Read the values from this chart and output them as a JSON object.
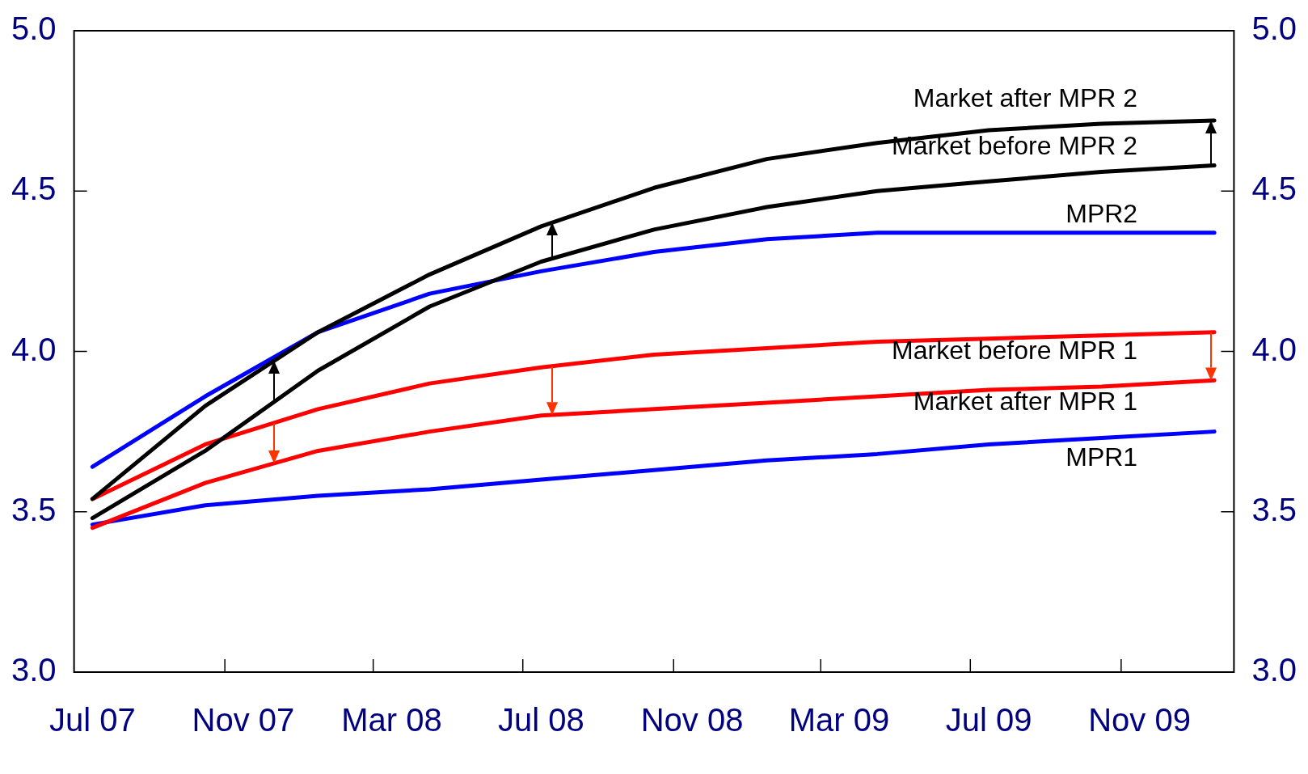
{
  "chart_data": {
    "type": "line",
    "x": [
      "2007-07-16",
      "2007-10-16",
      "2008-01-16",
      "2008-04-16",
      "2008-07-16",
      "2008-10-16",
      "2009-01-16",
      "2009-04-16",
      "2009-07-16",
      "2009-10-16",
      "2010-01-16"
    ],
    "series": [
      {
        "name": "Market after MPR 2",
        "color": "#000000",
        "values": [
          3.54,
          3.83,
          4.06,
          4.24,
          4.39,
          4.51,
          4.6,
          4.65,
          4.69,
          4.71,
          4.72
        ]
      },
      {
        "name": "Market before MPR 2",
        "color": "#000000",
        "values": [
          3.48,
          3.69,
          3.94,
          4.14,
          4.28,
          4.38,
          4.45,
          4.5,
          4.53,
          4.56,
          4.58
        ]
      },
      {
        "name": "MPR2",
        "color": "#0000ff",
        "values": [
          3.64,
          3.86,
          4.06,
          4.18,
          4.25,
          4.31,
          4.35,
          4.37,
          4.37,
          4.37,
          4.37
        ]
      },
      {
        "name": "Market before MPR 1",
        "color": "#ff0000",
        "values": [
          3.54,
          3.71,
          3.82,
          3.9,
          3.95,
          3.99,
          4.01,
          4.03,
          4.04,
          4.05,
          4.06
        ]
      },
      {
        "name": "Market after MPR 1",
        "color": "#ff0000",
        "values": [
          3.45,
          3.59,
          3.69,
          3.75,
          3.8,
          3.82,
          3.84,
          3.86,
          3.88,
          3.89,
          3.91
        ]
      },
      {
        "name": "MPR1",
        "color": "#0000ff",
        "values": [
          3.46,
          3.52,
          3.55,
          3.57,
          3.6,
          3.63,
          3.66,
          3.68,
          3.71,
          3.73,
          3.75
        ]
      }
    ],
    "xlim": [
      "2007-07-01",
      "2010-02-01"
    ],
    "xticks": [
      {
        "value": "2007-07-16",
        "label": "Jul 07"
      },
      {
        "value": "2007-11-01",
        "label": null
      },
      {
        "value": "2007-11-16",
        "label": "Nov 07"
      },
      {
        "value": "2008-03-01",
        "label": null
      },
      {
        "value": "2008-03-16",
        "label": "Mar 08"
      },
      {
        "value": "2008-07-01",
        "label": null
      },
      {
        "value": "2008-07-16",
        "label": "Jul 08"
      },
      {
        "value": "2008-11-01",
        "label": null
      },
      {
        "value": "2008-11-16",
        "label": "Nov 08"
      },
      {
        "value": "2009-03-01",
        "label": null
      },
      {
        "value": "2009-03-16",
        "label": "Mar 09"
      },
      {
        "value": "2009-07-01",
        "label": null
      },
      {
        "value": "2009-07-16",
        "label": "Jul 09"
      },
      {
        "value": "2009-11-01",
        "label": null
      },
      {
        "value": "2009-11-16",
        "label": "Nov 09"
      }
    ],
    "ylim": [
      3,
      5
    ],
    "yticks": [
      {
        "value": 3,
        "label": "3.0"
      },
      {
        "value": 3.5,
        "label": "3.5"
      },
      {
        "value": 4,
        "label": "4.0"
      },
      {
        "value": 4.5,
        "label": "4.5"
      },
      {
        "value": 5,
        "label": "5.0"
      }
    ],
    "y2lim": [
      3,
      5
    ],
    "y2ticks": [
      {
        "value": 3,
        "label": "3.0"
      },
      {
        "value": 3.5,
        "label": "3.5"
      },
      {
        "value": 4,
        "label": "4.0"
      },
      {
        "value": 4.5,
        "label": "4.5"
      },
      {
        "value": 5,
        "label": "5.0"
      }
    ],
    "grid": false,
    "legend": false,
    "marker": "none",
    "line_style": "solid"
  }
}
